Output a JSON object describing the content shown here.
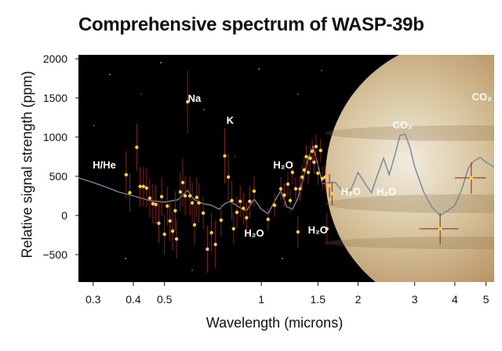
{
  "title": "Comprehensive spectrum of WASP-39b",
  "chart_data": {
    "type": "scatter",
    "title": "Comprehensive spectrum of WASP-39b",
    "xlabel": "Wavelength (microns)",
    "ylabel": "Relative signal strength (ppm)",
    "xscale": "log",
    "xlim": [
      0.27,
      5.3
    ],
    "ylim": [
      -850,
      2050
    ],
    "xticks": [
      0.3,
      0.4,
      0.5,
      1,
      1.5,
      2,
      3,
      4,
      5
    ],
    "xtick_labels": [
      "0.3",
      "0.4",
      "0.5",
      "1",
      "1.5",
      "2",
      "3",
      "4",
      "5"
    ],
    "yticks": [
      -500,
      0,
      500,
      1000,
      1500,
      2000
    ],
    "ytick_labels": [
      "−500",
      "0",
      "500",
      "1000",
      "1500",
      "2000"
    ],
    "grid": false,
    "legend": "none",
    "colors": {
      "points": "#ffd21a",
      "errorbars": "#8a1c1c",
      "model": "#6d8aa0",
      "background": "#000000"
    },
    "points": [
      {
        "x": 0.38,
        "y": 520,
        "err": 300
      },
      {
        "x": 0.39,
        "y": 290,
        "err": 250
      },
      {
        "x": 0.41,
        "y": 870,
        "err": 300
      },
      {
        "x": 0.42,
        "y": 370,
        "err": 250
      },
      {
        "x": 0.43,
        "y": 370,
        "err": 250
      },
      {
        "x": 0.44,
        "y": 350,
        "err": 250
      },
      {
        "x": 0.45,
        "y": 220,
        "err": 250
      },
      {
        "x": 0.46,
        "y": 150,
        "err": 250
      },
      {
        "x": 0.47,
        "y": 140,
        "err": 250
      },
      {
        "x": 0.48,
        "y": -100,
        "err": 250
      },
      {
        "x": 0.49,
        "y": 240,
        "err": 250
      },
      {
        "x": 0.5,
        "y": -240,
        "err": 250
      },
      {
        "x": 0.51,
        "y": 120,
        "err": 250
      },
      {
        "x": 0.52,
        "y": -70,
        "err": 250
      },
      {
        "x": 0.53,
        "y": -200,
        "err": 250
      },
      {
        "x": 0.54,
        "y": 60,
        "err": 250
      },
      {
        "x": 0.545,
        "y": -300,
        "err": 250
      },
      {
        "x": 0.56,
        "y": 300,
        "err": 250
      },
      {
        "x": 0.57,
        "y": 420,
        "err": 300
      },
      {
        "x": 0.58,
        "y": 250,
        "err": 250
      },
      {
        "x": 0.59,
        "y": 1450,
        "err": 400
      },
      {
        "x": 0.6,
        "y": 250,
        "err": 250
      },
      {
        "x": 0.61,
        "y": 160,
        "err": 250
      },
      {
        "x": 0.62,
        "y": -120,
        "err": 250
      },
      {
        "x": 0.63,
        "y": 230,
        "err": 250
      },
      {
        "x": 0.64,
        "y": 160,
        "err": 250
      },
      {
        "x": 0.66,
        "y": 30,
        "err": 200
      },
      {
        "x": 0.68,
        "y": -430,
        "err": 300
      },
      {
        "x": 0.7,
        "y": -220,
        "err": 250
      },
      {
        "x": 0.72,
        "y": -370,
        "err": 300
      },
      {
        "x": 0.75,
        "y": -60,
        "err": 200
      },
      {
        "x": 0.77,
        "y": 760,
        "err": 350
      },
      {
        "x": 0.79,
        "y": 490,
        "err": 300
      },
      {
        "x": 0.81,
        "y": 190,
        "err": 250
      },
      {
        "x": 0.82,
        "y": -170,
        "err": 200
      },
      {
        "x": 0.84,
        "y": 40,
        "err": 200
      },
      {
        "x": 0.86,
        "y": 180,
        "err": 200
      },
      {
        "x": 0.88,
        "y": 90,
        "err": 200
      },
      {
        "x": 0.9,
        "y": -30,
        "err": 200
      },
      {
        "x": 0.92,
        "y": 180,
        "err": 200
      },
      {
        "x": 0.95,
        "y": 310,
        "err": 200
      },
      {
        "x": 1.05,
        "y": -50,
        "err": 150
      },
      {
        "x": 1.1,
        "y": 130,
        "err": 150
      },
      {
        "x": 1.15,
        "y": 340,
        "err": 150
      },
      {
        "x": 1.18,
        "y": 260,
        "err": 150
      },
      {
        "x": 1.21,
        "y": 400,
        "err": 150
      },
      {
        "x": 1.23,
        "y": 190,
        "err": 150
      },
      {
        "x": 1.25,
        "y": 550,
        "err": 150
      },
      {
        "x": 1.28,
        "y": 340,
        "err": 150
      },
      {
        "x": 1.3,
        "y": -210,
        "err": 200
      },
      {
        "x": 1.32,
        "y": 340,
        "err": 150
      },
      {
        "x": 1.34,
        "y": 490,
        "err": 150
      },
      {
        "x": 1.36,
        "y": 580,
        "err": 150
      },
      {
        "x": 1.38,
        "y": 750,
        "err": 150
      },
      {
        "x": 1.4,
        "y": 550,
        "err": 150
      },
      {
        "x": 1.42,
        "y": 730,
        "err": 150
      },
      {
        "x": 1.44,
        "y": 820,
        "err": 150
      },
      {
        "x": 1.46,
        "y": 680,
        "err": 150
      },
      {
        "x": 1.48,
        "y": 880,
        "err": 150
      },
      {
        "x": 1.5,
        "y": 540,
        "err": 150
      },
      {
        "x": 1.53,
        "y": 830,
        "err": 150
      },
      {
        "x": 1.55,
        "y": 470,
        "err": 150
      },
      {
        "x": 1.58,
        "y": 490,
        "err": 150
      },
      {
        "x": 1.6,
        "y": -170,
        "err": 200
      },
      {
        "x": 1.63,
        "y": 380,
        "err": 150
      },
      {
        "x": 1.66,
        "y": 280,
        "err": 150
      },
      {
        "x": 3.6,
        "y": -170,
        "err": 200,
        "xerr": 0.5
      },
      {
        "x": 4.5,
        "y": 480,
        "err": 200,
        "xerr": 0.5
      }
    ],
    "model_line": {
      "x": [
        0.27,
        0.3,
        0.33,
        0.36,
        0.4,
        0.45,
        0.5,
        0.55,
        0.59,
        0.62,
        0.66,
        0.7,
        0.74,
        0.77,
        0.8,
        0.85,
        0.9,
        0.95,
        1.0,
        1.05,
        1.1,
        1.15,
        1.2,
        1.25,
        1.3,
        1.35,
        1.4,
        1.45,
        1.5,
        1.55,
        1.6,
        1.7,
        1.8,
        1.9,
        2.0,
        2.1,
        2.2,
        2.3,
        2.4,
        2.5,
        2.6,
        2.7,
        2.8,
        2.9,
        3.0,
        3.2,
        3.4,
        3.6,
        3.8,
        4.0,
        4.2,
        4.4,
        4.6,
        4.8,
        5.0,
        5.3
      ],
      "y": [
        480,
        420,
        360,
        300,
        250,
        190,
        170,
        200,
        320,
        200,
        150,
        130,
        80,
        150,
        180,
        110,
        60,
        210,
        80,
        20,
        180,
        320,
        110,
        80,
        220,
        470,
        730,
        880,
        650,
        400,
        420,
        420,
        300,
        330,
        550,
        410,
        290,
        520,
        730,
        520,
        760,
        1020,
        1040,
        870,
        620,
        300,
        100,
        0,
        60,
        130,
        330,
        600,
        700,
        740,
        680,
        620
      ]
    },
    "annotations": [
      {
        "text": "H/He",
        "x": 0.325,
        "y": 600
      },
      {
        "text": "Na",
        "x": 0.62,
        "y": 1450
      },
      {
        "text": "K",
        "x": 0.8,
        "y": 1170
      },
      {
        "text": "H₂O",
        "x": 1.17,
        "y": 600
      },
      {
        "text": "H₂O",
        "x": 0.95,
        "y": -270
      },
      {
        "text": "H₂O",
        "x": 1.5,
        "y": -230
      },
      {
        "text": "H₂O",
        "x": 1.9,
        "y": 260
      },
      {
        "text": "H₂O",
        "x": 2.45,
        "y": 260
      },
      {
        "text": "CO₂",
        "x": 2.75,
        "y": 1110
      },
      {
        "text": "CO₂",
        "x": 4.85,
        "y": 1470
      }
    ]
  }
}
